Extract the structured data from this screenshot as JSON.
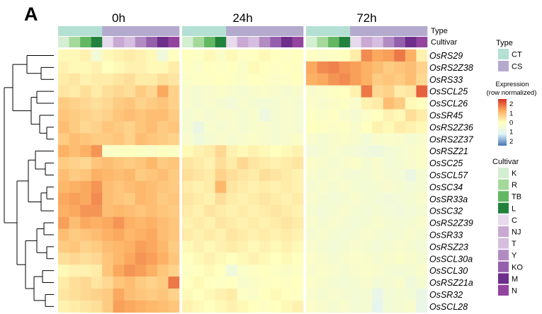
{
  "panel_label": "A",
  "chart_data": {
    "type": "heatmap",
    "timepoints": [
      "0h",
      "24h",
      "72h"
    ],
    "annotation_track_labels": [
      "Type",
      "Cultivar"
    ],
    "rows": [
      "OsRS29",
      "OsRS2Z38",
      "OsRS33",
      "OsSCL25",
      "OsSCL26",
      "OsSR45",
      "OsRS2Z36",
      "OsRS2Z37",
      "OsRSZ21",
      "OsSC25",
      "OsSCL57",
      "OsSC34",
      "OsSR33a",
      "OsSC32",
      "OsRS2Z39",
      "OsSR33",
      "OsRSZ23",
      "OsSCL30a",
      "OsSCL30",
      "OsRSZ21a",
      "OsSR32",
      "OsSCL28"
    ],
    "columns_per_timepoint": [
      "K",
      "R",
      "TB",
      "L",
      "C",
      "NJ",
      "T",
      "Y",
      "KO",
      "M",
      "N"
    ],
    "column_type": [
      "CT",
      "CT",
      "CT",
      "CT",
      "CS",
      "CS",
      "CS",
      "CS",
      "CS",
      "CS",
      "CS"
    ],
    "legend_type": {
      "title": "Type",
      "entries": [
        {
          "label": "CT",
          "color": "#b3e0d2"
        },
        {
          "label": "CS",
          "color": "#b3aacd"
        }
      ]
    },
    "legend_expression": {
      "title_line1": "Expression",
      "title_line2": "(row normalized)",
      "ticks": [
        "2",
        "1",
        "0",
        "1",
        "2"
      ],
      "tick_values": [
        2,
        1,
        0,
        -1,
        -2
      ],
      "range": [
        -2.5,
        2.5
      ],
      "colors": [
        "#4575b4",
        "#e0f3f8",
        "#ffffbf",
        "#fdae61",
        "#d73027"
      ]
    },
    "legend_cultivar": {
      "title": "Cultivar",
      "entries": [
        {
          "label": "K",
          "color": "#d3eed0"
        },
        {
          "label": "R",
          "color": "#a5d99b"
        },
        {
          "label": "TB",
          "color": "#63b763"
        },
        {
          "label": "L",
          "color": "#21823d"
        },
        {
          "label": "C",
          "color": "#e6daec"
        },
        {
          "label": "NJ",
          "color": "#c9a8d3"
        },
        {
          "label": "T",
          "color": "#d5bedf"
        },
        {
          "label": "Y",
          "color": "#b38bc3"
        },
        {
          "label": "KO",
          "color": "#9460ac"
        },
        {
          "label": "M",
          "color": "#6d2e8c"
        },
        {
          "label": "N",
          "color": "#93459e"
        }
      ]
    },
    "values": {
      "0h": [
        [
          0.1,
          0.1,
          0.2,
          -0.5,
          0.1,
          0.2,
          0.3,
          0.2,
          0.1,
          -0.6,
          0.0
        ],
        [
          0.2,
          0.1,
          0.1,
          0.2,
          0.0,
          0.1,
          0.2,
          0.2,
          0.1,
          0.1,
          0.3
        ],
        [
          0.3,
          0.4,
          0.2,
          0.3,
          0.3,
          0.4,
          0.5,
          0.3,
          0.3,
          0.5,
          0.4
        ],
        [
          0.4,
          0.3,
          0.5,
          0.3,
          0.5,
          0.6,
          0.5,
          0.8,
          0.6,
          1.3,
          0.7
        ],
        [
          0.8,
          0.7,
          0.6,
          0.5,
          0.6,
          0.8,
          0.9,
          0.7,
          0.8,
          0.9,
          0.7
        ],
        [
          0.9,
          0.8,
          0.7,
          0.6,
          0.7,
          0.9,
          1.0,
          0.9,
          1.0,
          1.0,
          0.8
        ],
        [
          1.0,
          0.8,
          0.6,
          0.7,
          0.9,
          0.8,
          0.7,
          0.9,
          1.0,
          0.8,
          0.9
        ],
        [
          0.8,
          1.0,
          0.9,
          0.8,
          0.8,
          0.9,
          0.7,
          1.0,
          0.9,
          0.8,
          0.7
        ],
        [
          1.2,
          1.0,
          1.2,
          1.5,
          -0.2,
          -0.1,
          0.0,
          -0.1,
          -0.2,
          0.0,
          -0.1
        ],
        [
          0.8,
          0.7,
          0.6,
          0.9,
          1.0,
          0.9,
          0.8,
          0.9,
          1.1,
          0.8,
          0.9
        ],
        [
          1.0,
          0.8,
          0.9,
          1.2,
          1.1,
          1.0,
          1.1,
          0.8,
          0.9,
          1.0,
          0.8
        ],
        [
          1.1,
          1.2,
          1.3,
          1.5,
          1.0,
          0.9,
          1.0,
          1.1,
          1.0,
          0.9,
          0.8
        ],
        [
          1.3,
          1.4,
          1.3,
          1.6,
          1.0,
          0.9,
          0.8,
          1.1,
          1.0,
          0.8,
          0.9
        ],
        [
          1.2,
          1.3,
          1.5,
          1.5,
          1.0,
          1.1,
          1.0,
          0.9,
          1.0,
          0.9,
          0.8
        ],
        [
          1.4,
          1.0,
          1.3,
          1.2,
          1.3,
          1.5,
          1.2,
          1.1,
          1.2,
          1.0,
          0.9
        ],
        [
          1.0,
          0.8,
          0.9,
          1.0,
          1.2,
          1.3,
          1.1,
          1.2,
          1.3,
          1.0,
          0.9
        ],
        [
          0.8,
          0.9,
          0.7,
          0.8,
          1.0,
          1.1,
          1.2,
          1.4,
          1.3,
          1.1,
          0.8
        ],
        [
          0.5,
          0.6,
          0.5,
          0.6,
          0.9,
          1.1,
          1.3,
          1.5,
          1.4,
          1.2,
          0.9
        ],
        [
          0.1,
          0.2,
          0.2,
          0.3,
          0.9,
          1.3,
          1.5,
          1.4,
          1.2,
          0.9,
          0.7
        ],
        [
          0.3,
          0.5,
          0.6,
          0.4,
          0.6,
          0.9,
          1.0,
          0.8,
          0.7,
          0.8,
          1.8
        ],
        [
          0.4,
          0.5,
          0.6,
          0.7,
          0.8,
          1.3,
          1.0,
          0.9,
          0.8,
          0.9,
          0.7
        ],
        [
          0.2,
          0.3,
          0.4,
          0.5,
          0.8,
          1.4,
          1.3,
          1.2,
          1.1,
          1.0,
          0.9
        ]
      ],
      "24h": [
        [
          0.0,
          -0.1,
          0.1,
          -0.2,
          0.1,
          -0.1,
          0.0,
          0.1,
          0.0,
          -0.1,
          0.0
        ],
        [
          -0.1,
          -0.2,
          0.0,
          -0.1,
          0.0,
          -0.2,
          0.1,
          0.0,
          -0.1,
          0.0,
          -0.1
        ],
        [
          -0.2,
          -0.1,
          -0.1,
          0.0,
          -0.1,
          -0.2,
          0.0,
          -0.1,
          -0.2,
          -0.1,
          0.0
        ],
        [
          -0.3,
          -0.4,
          -0.3,
          -0.2,
          -0.3,
          -0.4,
          -0.3,
          -0.2,
          -0.3,
          -0.4,
          -0.3
        ],
        [
          -0.3,
          -0.4,
          -0.3,
          -0.4,
          -0.5,
          -0.3,
          -0.4,
          -0.5,
          -0.4,
          -0.3,
          -0.4
        ],
        [
          -0.4,
          -0.3,
          -0.4,
          -0.3,
          -0.3,
          -0.4,
          -0.3,
          -0.7,
          -0.4,
          -0.3,
          -0.4
        ],
        [
          -0.4,
          -0.8,
          -0.3,
          -0.4,
          -0.3,
          -0.4,
          -0.3,
          -0.3,
          -0.4,
          -0.3,
          -0.4
        ],
        [
          -0.3,
          -0.6,
          -0.4,
          -0.3,
          -0.4,
          -0.3,
          -0.2,
          -0.3,
          -0.4,
          -0.3,
          -0.2
        ],
        [
          0.1,
          0.2,
          0.3,
          0.6,
          0.2,
          0.1,
          0.2,
          0.1,
          0.0,
          0.1,
          0.2
        ],
        [
          0.4,
          0.3,
          0.2,
          0.5,
          0.3,
          0.6,
          0.4,
          0.3,
          0.2,
          0.3,
          0.4
        ],
        [
          0.5,
          0.4,
          0.3,
          0.7,
          0.5,
          0.4,
          0.3,
          0.5,
          0.4,
          0.3,
          0.2
        ],
        [
          0.3,
          0.2,
          0.3,
          1.1,
          0.4,
          0.3,
          0.2,
          0.3,
          0.2,
          0.3,
          0.2
        ],
        [
          0.4,
          0.3,
          0.2,
          0.5,
          0.3,
          0.2,
          0.3,
          0.4,
          0.3,
          0.2,
          0.3
        ],
        [
          0.3,
          0.2,
          0.4,
          0.3,
          0.2,
          0.3,
          0.2,
          0.3,
          0.4,
          0.3,
          0.2
        ],
        [
          0.2,
          0.3,
          0.2,
          0.4,
          0.3,
          0.2,
          0.3,
          0.2,
          0.3,
          0.4,
          0.3
        ],
        [
          0.3,
          0.2,
          0.3,
          0.2,
          0.4,
          0.3,
          0.2,
          0.3,
          0.2,
          0.3,
          0.2
        ],
        [
          0.1,
          0.2,
          0.1,
          0.2,
          0.3,
          0.2,
          0.1,
          0.2,
          0.1,
          0.2,
          0.1
        ],
        [
          0.0,
          0.1,
          0.2,
          0.1,
          0.0,
          0.1,
          0.2,
          0.1,
          0.0,
          0.1,
          0.0
        ],
        [
          -0.1,
          0.0,
          0.1,
          0.0,
          -0.6,
          -0.2,
          -0.1,
          0.0,
          -0.1,
          -0.2,
          -0.1
        ],
        [
          0.0,
          0.1,
          0.0,
          -0.1,
          0.0,
          -0.3,
          -0.2,
          -0.1,
          0.0,
          -0.1,
          0.0
        ],
        [
          0.1,
          0.0,
          0.1,
          0.2,
          0.3,
          -0.1,
          -0.2,
          0.0,
          0.1,
          0.0,
          -0.1
        ],
        [
          0.2,
          0.1,
          0.0,
          0.1,
          0.2,
          0.1,
          0.0,
          -0.1,
          0.0,
          0.1,
          0.2
        ]
      ],
      "72h": [
        [
          -0.1,
          -0.2,
          -0.1,
          0.0,
          0.3,
          1.6,
          1.3,
          1.4,
          1.8,
          1.2,
          0.2
        ],
        [
          1.3,
          1.6,
          1.7,
          1.5,
          1.4,
          1.2,
          1.0,
          0.8,
          0.9,
          1.0,
          0.7
        ],
        [
          1.2,
          1.3,
          1.5,
          1.6,
          1.4,
          1.2,
          0.8,
          0.9,
          0.8,
          1.0,
          0.6
        ],
        [
          -0.3,
          -0.2,
          -0.1,
          0.0,
          0.2,
          1.8,
          0.6,
          0.7,
          0.3,
          0.4,
          2.0
        ],
        [
          -0.2,
          -0.3,
          -0.2,
          -0.1,
          -0.3,
          0.2,
          0.3,
          1.0,
          0.8,
          0.1,
          0.0
        ],
        [
          -0.1,
          -0.2,
          -0.1,
          -0.3,
          -0.4,
          -0.2,
          0.0,
          0.2,
          0.1,
          0.5,
          0.3
        ],
        [
          0.0,
          -0.1,
          -0.2,
          -0.1,
          -0.3,
          0.0,
          0.2,
          0.1,
          0.3,
          0.2,
          0.1
        ],
        [
          -0.3,
          -0.4,
          -0.3,
          -0.2,
          -0.3,
          -0.5,
          -0.3,
          -0.2,
          -0.3,
          -0.4,
          -0.3
        ],
        [
          -0.5,
          -0.4,
          -0.3,
          -0.4,
          -0.5,
          -0.6,
          -0.7,
          -0.5,
          -0.4,
          -0.3,
          -0.2
        ],
        [
          -0.2,
          -0.3,
          -0.4,
          -0.3,
          -0.2,
          -0.4,
          -0.3,
          -0.5,
          -0.4,
          -0.3,
          -0.2
        ],
        [
          -0.3,
          -0.4,
          -0.3,
          -0.4,
          -0.5,
          -0.4,
          -0.3,
          -0.4,
          -0.5,
          -0.8,
          -0.4
        ],
        [
          -0.4,
          -0.3,
          -0.4,
          -0.3,
          -0.4,
          -0.5,
          -0.4,
          -0.3,
          -0.4,
          -0.5,
          -0.4
        ],
        [
          -0.3,
          -0.4,
          -0.5,
          -0.4,
          -0.3,
          -0.4,
          -0.5,
          -0.6,
          -0.5,
          -0.4,
          -0.3
        ],
        [
          -0.4,
          -0.5,
          -0.4,
          -0.3,
          -0.4,
          -0.5,
          -0.4,
          -0.5,
          -0.6,
          -0.5,
          -0.4
        ],
        [
          -0.3,
          -0.4,
          -0.3,
          -0.4,
          -0.5,
          -0.4,
          -0.3,
          -0.4,
          -0.5,
          -0.4,
          -0.3
        ],
        [
          -0.4,
          -0.3,
          -0.4,
          -0.5,
          -0.4,
          -0.3,
          -0.4,
          -0.5,
          -0.4,
          -0.3,
          -0.4
        ],
        [
          -0.3,
          -0.4,
          -0.5,
          -0.4,
          -0.3,
          -0.4,
          -0.5,
          -0.4,
          -0.3,
          -0.4,
          -0.5
        ],
        [
          -0.2,
          -0.3,
          -0.4,
          -0.3,
          -0.2,
          -0.3,
          -0.4,
          -0.3,
          -0.2,
          -0.3,
          -0.4
        ],
        [
          -0.3,
          -0.2,
          -0.3,
          -0.4,
          -0.3,
          -0.2,
          -0.3,
          -0.4,
          -0.5,
          -0.4,
          -0.3
        ],
        [
          -0.2,
          -0.3,
          -0.4,
          -0.5,
          -0.4,
          -0.3,
          -0.5,
          -0.4,
          -0.3,
          -0.6,
          -0.4
        ],
        [
          -0.3,
          -0.4,
          -0.3,
          -0.4,
          -0.5,
          -0.4,
          -0.9,
          -0.5,
          -0.4,
          -0.5,
          -0.8
        ],
        [
          -0.2,
          -0.3,
          -0.4,
          -0.3,
          -0.5,
          -0.4,
          -1.0,
          -0.5,
          -0.4,
          -0.3,
          -0.9
        ]
      ]
    }
  }
}
